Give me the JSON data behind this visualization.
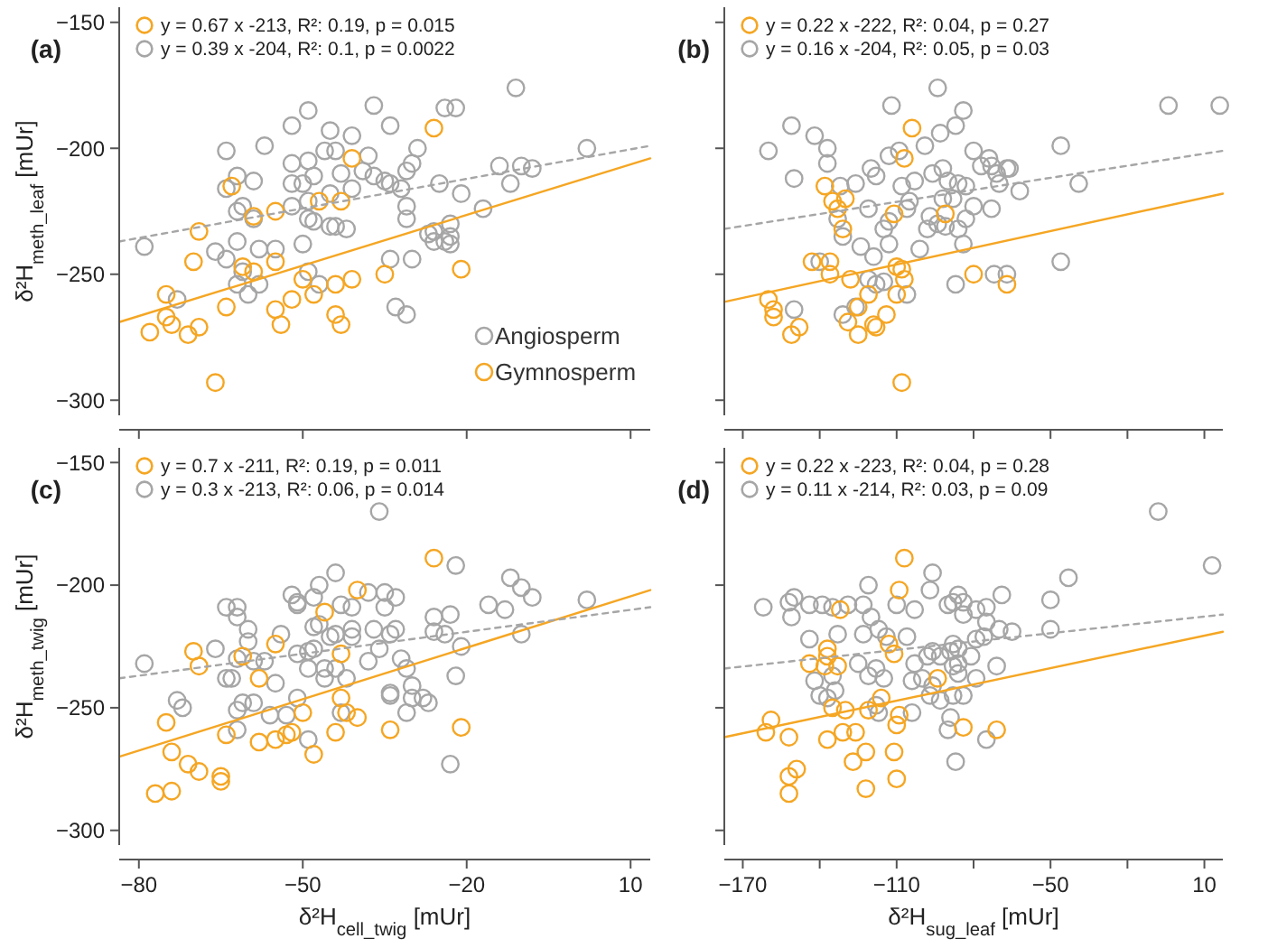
{
  "chart_data": [
    {
      "type": "scatter",
      "title": "(a)",
      "ylabel": "δ²H$_{meth_leaf}$ [mUr]",
      "xlim": [
        -83.6,
        13.6
      ],
      "xticks": [
        -80,
        -50,
        -20,
        10
      ],
      "ylim": [
        -306,
        -144
      ],
      "yticks": [
        -150,
        -200,
        -250,
        -300
      ],
      "tick_labels": "y",
      "legend": "top left",
      "series": [
        {
          "name": "Angiosperm",
          "marker": "circle",
          "color": "#a6a6a6",
          "x": [
            -11,
            -37,
            -24,
            -22,
            -49,
            -34,
            -52,
            -45,
            -41,
            -64,
            -57,
            -46,
            -44,
            -29,
            -38,
            -49,
            -52,
            -30,
            -31,
            2,
            -14,
            -10,
            -8,
            -62,
            -59,
            -52,
            -50,
            -48,
            -43,
            -39,
            -37,
            -35,
            -34,
            -32,
            -25,
            -21,
            -12,
            -64,
            -61,
            -62,
            -52,
            -49,
            -45,
            -41,
            -31,
            -17,
            -59,
            -49,
            -48,
            -45,
            -44,
            -42,
            -31,
            -27,
            -26,
            -23,
            -24,
            -23,
            -26,
            -62,
            -66,
            -64,
            -58,
            -55,
            -50,
            -79,
            -62,
            -60,
            -58,
            -49,
            -47,
            -34,
            -30,
            -73,
            -33,
            -31,
            -61,
            -23
          ],
          "values": [
            -176,
            -183,
            -184,
            -184,
            -185,
            -191,
            -191,
            -193,
            -195,
            -201,
            -199,
            -201,
            -201,
            -200,
            -203,
            -205,
            -206,
            -206,
            -209,
            -200,
            -207,
            -207,
            -208,
            -211,
            -213,
            -214,
            -214,
            -211,
            -210,
            -209,
            -211,
            -213,
            -214,
            -216,
            -214,
            -218,
            -214,
            -216,
            -223,
            -225,
            -223,
            -221,
            -218,
            -216,
            -223,
            -224,
            -228,
            -228,
            -229,
            -231,
            -231,
            -232,
            -228,
            -234,
            -233,
            -230,
            -237,
            -238,
            -237,
            -237,
            -241,
            -244,
            -240,
            -240,
            -238,
            -239,
            -254,
            -258,
            -254,
            -249,
            -254,
            -244,
            -244,
            -260,
            -263,
            -266,
            -249,
            -235
          ]
        },
        {
          "name": "Gymnosperm",
          "marker": "circle",
          "color": "#f5a623",
          "x": [
            -26,
            -41,
            -63,
            -47,
            -43,
            -55,
            -59,
            -69,
            -70,
            -61,
            -55,
            -59,
            -50,
            -41,
            -35,
            -21,
            -75,
            -75,
            -74,
            -78,
            -71,
            -69,
            -64,
            -55,
            -54,
            -52,
            -48,
            -44,
            -44,
            -43,
            -66
          ],
          "values": [
            -192,
            -204,
            -215,
            -221,
            -221,
            -225,
            -227,
            -233,
            -245,
            -247,
            -245,
            -249,
            -252,
            -252,
            -250,
            -248,
            -258,
            -267,
            -270,
            -273,
            -274,
            -271,
            -263,
            -264,
            -270,
            -260,
            -258,
            -254,
            -266,
            -270,
            -293
          ]
        },
        {
          "type": "line",
          "name": "y = 0.67 x -213, R²: 0.19, p = 0.015",
          "color": "#f5a623",
          "line_style": "solid",
          "x": [
            -83.6,
            13.6
          ],
          "values": [
            -269,
            -204
          ]
        },
        {
          "type": "line",
          "name": "y = 0.39 x -204, R²: 0.1, p = 0.0022",
          "color": "#a6a6a6",
          "line_style": "dashed",
          "x": [
            -83.6,
            13.6
          ],
          "values": [
            -237,
            -199
          ]
        }
      ]
    },
    {
      "type": "scatter",
      "title": "(b)",
      "xlim": [
        -177.2,
        17.2
      ],
      "xticks": [
        -170,
        {
          "value": -140,
          "label": null
        },
        -110,
        {
          "value": -80,
          "label": null
        },
        -50,
        {
          "value": -20,
          "label": null
        },
        10
      ],
      "ylim": [
        -306,
        -144
      ],
      "yticks": [
        -150,
        -200,
        -250,
        -300
      ],
      "tick_labels": false,
      "legend": "top left",
      "series": [
        {
          "marker": "circle",
          "color": "#a6a6a6",
          "x": [
            -94,
            -112,
            -84,
            -87,
            -93,
            -4,
            16,
            -151,
            -160,
            -142,
            -137,
            -137,
            -150,
            -120,
            -118,
            -109,
            -113,
            -99,
            -103,
            -108,
            -126,
            -132,
            -133,
            -131,
            -121,
            -106,
            -105,
            -97,
            -96,
            -92,
            -90,
            -88,
            -86,
            -83,
            -80,
            -77,
            -74,
            -73,
            -71,
            -67,
            -66,
            -70,
            -62,
            -46,
            -39,
            -80,
            -83,
            -86,
            -73,
            -98,
            -94,
            -91,
            -92,
            -115,
            -113,
            -101,
            -113,
            -119,
            -124,
            -140,
            -121,
            -118,
            -115,
            -106,
            -84,
            -87,
            -72,
            -67,
            -46,
            -150,
            -131,
            -126
          ],
          "values": [
            -176,
            -183,
            -185,
            -191,
            -194,
            -183,
            -183,
            -191,
            -201,
            -195,
            -200,
            -206,
            -212,
            -208,
            -211,
            -201,
            -203,
            -199,
            -213,
            -215,
            -214,
            -215,
            -228,
            -235,
            -224,
            -224,
            -221,
            -227,
            -210,
            -208,
            -213,
            -220,
            -214,
            -215,
            -201,
            -207,
            -204,
            -207,
            -210,
            -208,
            -208,
            -214,
            -217,
            -199,
            -214,
            -223,
            -228,
            -232,
            -224,
            -232,
            -230,
            -231,
            -220,
            -232,
            -229,
            -240,
            -238,
            -243,
            -239,
            -245,
            -252,
            -254,
            -253,
            -258,
            -238,
            -254,
            -250,
            -250,
            -245,
            -264,
            -266,
            -263
          ]
        },
        {
          "marker": "circle",
          "color": "#f5a623",
          "x": [
            -104,
            -107,
            -138,
            -135,
            -130,
            -133,
            -131,
            -111,
            -91,
            -143,
            -136,
            -136,
            -128,
            -110,
            -108,
            -107,
            -110,
            -80,
            -67,
            -160,
            -158,
            -158,
            -151,
            -148,
            -129,
            -125,
            -125,
            -121,
            -119,
            -118,
            -114,
            -108
          ],
          "values": [
            -192,
            -204,
            -215,
            -221,
            -220,
            -224,
            -232,
            -226,
            -226,
            -245,
            -245,
            -250,
            -252,
            -247,
            -248,
            -252,
            -258,
            -250,
            -254,
            -260,
            -267,
            -264,
            -274,
            -271,
            -269,
            -274,
            -263,
            -258,
            -270,
            -271,
            -266,
            -293
          ]
        },
        {
          "type": "line",
          "name": "y = 0.22 x -222, R²: 0.04, p = 0.27",
          "color": "#f5a623",
          "line_style": "solid",
          "x": [
            -177.2,
            17.2
          ],
          "values": [
            -261,
            -218
          ]
        },
        {
          "type": "line",
          "name": "y = 0.16 x -204, R²: 0.05, p = 0.03",
          "color": "#a6a6a6",
          "line_style": "dashed",
          "x": [
            -177.2,
            17.2
          ],
          "values": [
            -232,
            -201
          ]
        }
      ]
    },
    {
      "type": "scatter",
      "title": "(c)",
      "xlabel": "δ²H$_{cell_twig}$ [mUr]",
      "ylabel": "δ²H$_{meth_twig}$ [mUr]",
      "xlim": [
        -83.6,
        13.6
      ],
      "xticks": [
        -80,
        -50,
        -20,
        10
      ],
      "ylim": [
        -306,
        -144
      ],
      "yticks": [
        -150,
        -200,
        -250,
        -300
      ],
      "legend": "top left",
      "series": [
        {
          "marker": "circle",
          "color": "#a6a6a6",
          "x": [
            -36,
            -22,
            -44,
            -47,
            -52,
            -51,
            -51,
            -48,
            -43,
            -41,
            -38,
            -35,
            -35,
            -33,
            -64,
            -62,
            -62,
            -60,
            -60,
            -54,
            -48,
            -47,
            -45,
            -44,
            -41,
            -41,
            -37,
            -33,
            -34,
            -26,
            -23,
            -26,
            -24,
            -21,
            -16,
            -13,
            -12,
            -10,
            -8,
            2,
            -10,
            -66,
            -64,
            -62,
            -59,
            -57,
            -55,
            -51,
            -49,
            -48,
            -49,
            -46,
            -46,
            -44,
            -42,
            -38,
            -36,
            -32,
            -31,
            -30,
            -30,
            -34,
            -34,
            -31,
            -28,
            -27,
            -22,
            -23,
            -73,
            -72,
            -61,
            -59,
            -62,
            -56,
            -53,
            -51,
            -49,
            -43,
            -79,
            -62,
            -63
          ],
          "values": [
            -170,
            -192,
            -195,
            -200,
            -204,
            -207,
            -208,
            -205,
            -208,
            -209,
            -203,
            -203,
            -209,
            -205,
            -209,
            -209,
            -213,
            -218,
            -223,
            -220,
            -217,
            -216,
            -221,
            -220,
            -221,
            -218,
            -218,
            -218,
            -220,
            -213,
            -212,
            -219,
            -220,
            -225,
            -208,
            -210,
            -197,
            -201,
            -205,
            -206,
            -220,
            -226,
            -238,
            -230,
            -231,
            -231,
            -240,
            -228,
            -227,
            -226,
            -234,
            -238,
            -234,
            -234,
            -238,
            -231,
            -226,
            -230,
            -234,
            -241,
            -246,
            -244,
            -245,
            -252,
            -246,
            -248,
            -237,
            -273,
            -247,
            -250,
            -248,
            -248,
            -251,
            -253,
            -253,
            -246,
            -263,
            -252,
            -232,
            -259,
            -238
          ]
        },
        {
          "marker": "circle",
          "color": "#f5a623",
          "x": [
            -26,
            -40,
            -46,
            -55,
            -70,
            -69,
            -61,
            -58,
            -43,
            -43,
            -42,
            -40,
            -75,
            -64,
            -58,
            -55,
            -53,
            -52,
            -50,
            -48,
            -44,
            -34,
            -21,
            -74,
            -71,
            -69,
            -65,
            -65,
            -77,
            -74
          ],
          "values": [
            -189,
            -202,
            -211,
            -224,
            -227,
            -233,
            -229,
            -238,
            -228,
            -246,
            -252,
            -254,
            -256,
            -261,
            -264,
            -263,
            -261,
            -260,
            -252,
            -269,
            -260,
            -259,
            -258,
            -268,
            -273,
            -276,
            -278,
            -280,
            -285,
            -284
          ]
        },
        {
          "type": "line",
          "name": "y = 0.7 x -211, R²: 0.19, p = 0.011",
          "color": "#f5a623",
          "line_style": "solid",
          "x": [
            -83.6,
            13.6
          ],
          "values": [
            -270,
            -202
          ]
        },
        {
          "type": "line",
          "name": "y = 0.3 x -213, R²: 0.06, p = 0.014",
          "color": "#a6a6a6",
          "line_style": "dashed",
          "x": [
            -83.6,
            13.6
          ],
          "values": [
            -238,
            -209
          ]
        }
      ]
    },
    {
      "type": "scatter",
      "title": "(d)",
      "xlabel": "δ²H$_{sug_leaf}$ [mUr]",
      "xlim": [
        -177.2,
        17.2
      ],
      "xticks": [
        -170,
        {
          "value": -140,
          "label": null
        },
        -110,
        {
          "value": -80,
          "label": null
        },
        -50,
        {
          "value": -20,
          "label": null
        },
        10
      ],
      "ylim": [
        -306,
        -144
      ],
      "yticks": [
        -150,
        -200,
        -250,
        -300
      ],
      "tick_labels": "x",
      "legend": "top left",
      "series": [
        {
          "marker": "circle",
          "color": "#a6a6a6",
          "x": [
            -8,
            13,
            -43,
            -96,
            -97,
            -121,
            -150,
            -162,
            -152,
            -151,
            -144,
            -139,
            -135,
            -123,
            -129,
            -120,
            -110,
            -103,
            -90,
            -86,
            -84,
            -88,
            -84,
            -79,
            -69,
            -75,
            -75,
            -70,
            -65,
            -50,
            -50,
            -76,
            -79,
            -133,
            -144,
            -123,
            -117,
            -114,
            -106,
            -96,
            -93,
            -89,
            -88,
            -86,
            -86,
            -81,
            -98,
            -103,
            -118,
            -125,
            -135,
            -142,
            -121,
            -115,
            -104,
            -100,
            -96,
            -88,
            -86,
            -79,
            -71,
            -134,
            -140,
            -137,
            -118,
            -117,
            -97,
            -93,
            -88,
            -84,
            -89,
            -90,
            -104,
            -75,
            -87
          ],
          "values": [
            -170,
            -192,
            -197,
            -195,
            -202,
            -200,
            -205,
            -209,
            -207,
            -213,
            -208,
            -208,
            -209,
            -208,
            -208,
            -213,
            -208,
            -210,
            -208,
            -204,
            -207,
            -207,
            -212,
            -210,
            -204,
            -209,
            -215,
            -218,
            -219,
            -206,
            -218,
            -221,
            -222,
            -220,
            -222,
            -220,
            -218,
            -221,
            -221,
            -227,
            -229,
            -227,
            -224,
            -226,
            -232,
            -229,
            -229,
            -232,
            -234,
            -232,
            -237,
            -239,
            -237,
            -238,
            -239,
            -238,
            -241,
            -233,
            -236,
            -238,
            -233,
            -243,
            -245,
            -246,
            -249,
            -252,
            -245,
            -247,
            -245,
            -245,
            -254,
            -259,
            -252,
            -263,
            -272
          ]
        },
        {
          "marker": "circle",
          "color": "#f5a623",
          "x": [
            -107,
            -109,
            -132,
            -137,
            -137,
            -144,
            -138,
            -133,
            -113,
            -111,
            -94,
            -159,
            -161,
            -152,
            -137,
            -135,
            -130,
            -121,
            -116,
            -110,
            -109,
            -131,
            -126,
            -84,
            -71,
            -122,
            -127,
            -111,
            -149,
            -152,
            -152,
            -122,
            -110
          ],
          "values": [
            -189,
            -202,
            -210,
            -226,
            -229,
            -232,
            -233,
            -233,
            -224,
            -228,
            -238,
            -255,
            -260,
            -262,
            -263,
            -250,
            -251,
            -251,
            -246,
            -257,
            -253,
            -260,
            -260,
            -258,
            -259,
            -268,
            -272,
            -268,
            -275,
            -278,
            -285,
            -283,
            -279
          ]
        },
        {
          "type": "line",
          "name": "y = 0.22 x -223, R²: 0.04, p = 0.28",
          "color": "#f5a623",
          "line_style": "solid",
          "x": [
            -177.2,
            17.2
          ],
          "values": [
            -262,
            -219
          ]
        },
        {
          "type": "line",
          "name": "y = 0.11 x -214, R²: 0.03, p = 0.09",
          "color": "#a6a6a6",
          "line_style": "dashed",
          "x": [
            -177.2,
            17.2
          ],
          "values": [
            -234,
            -212
          ]
        }
      ]
    }
  ]
}
